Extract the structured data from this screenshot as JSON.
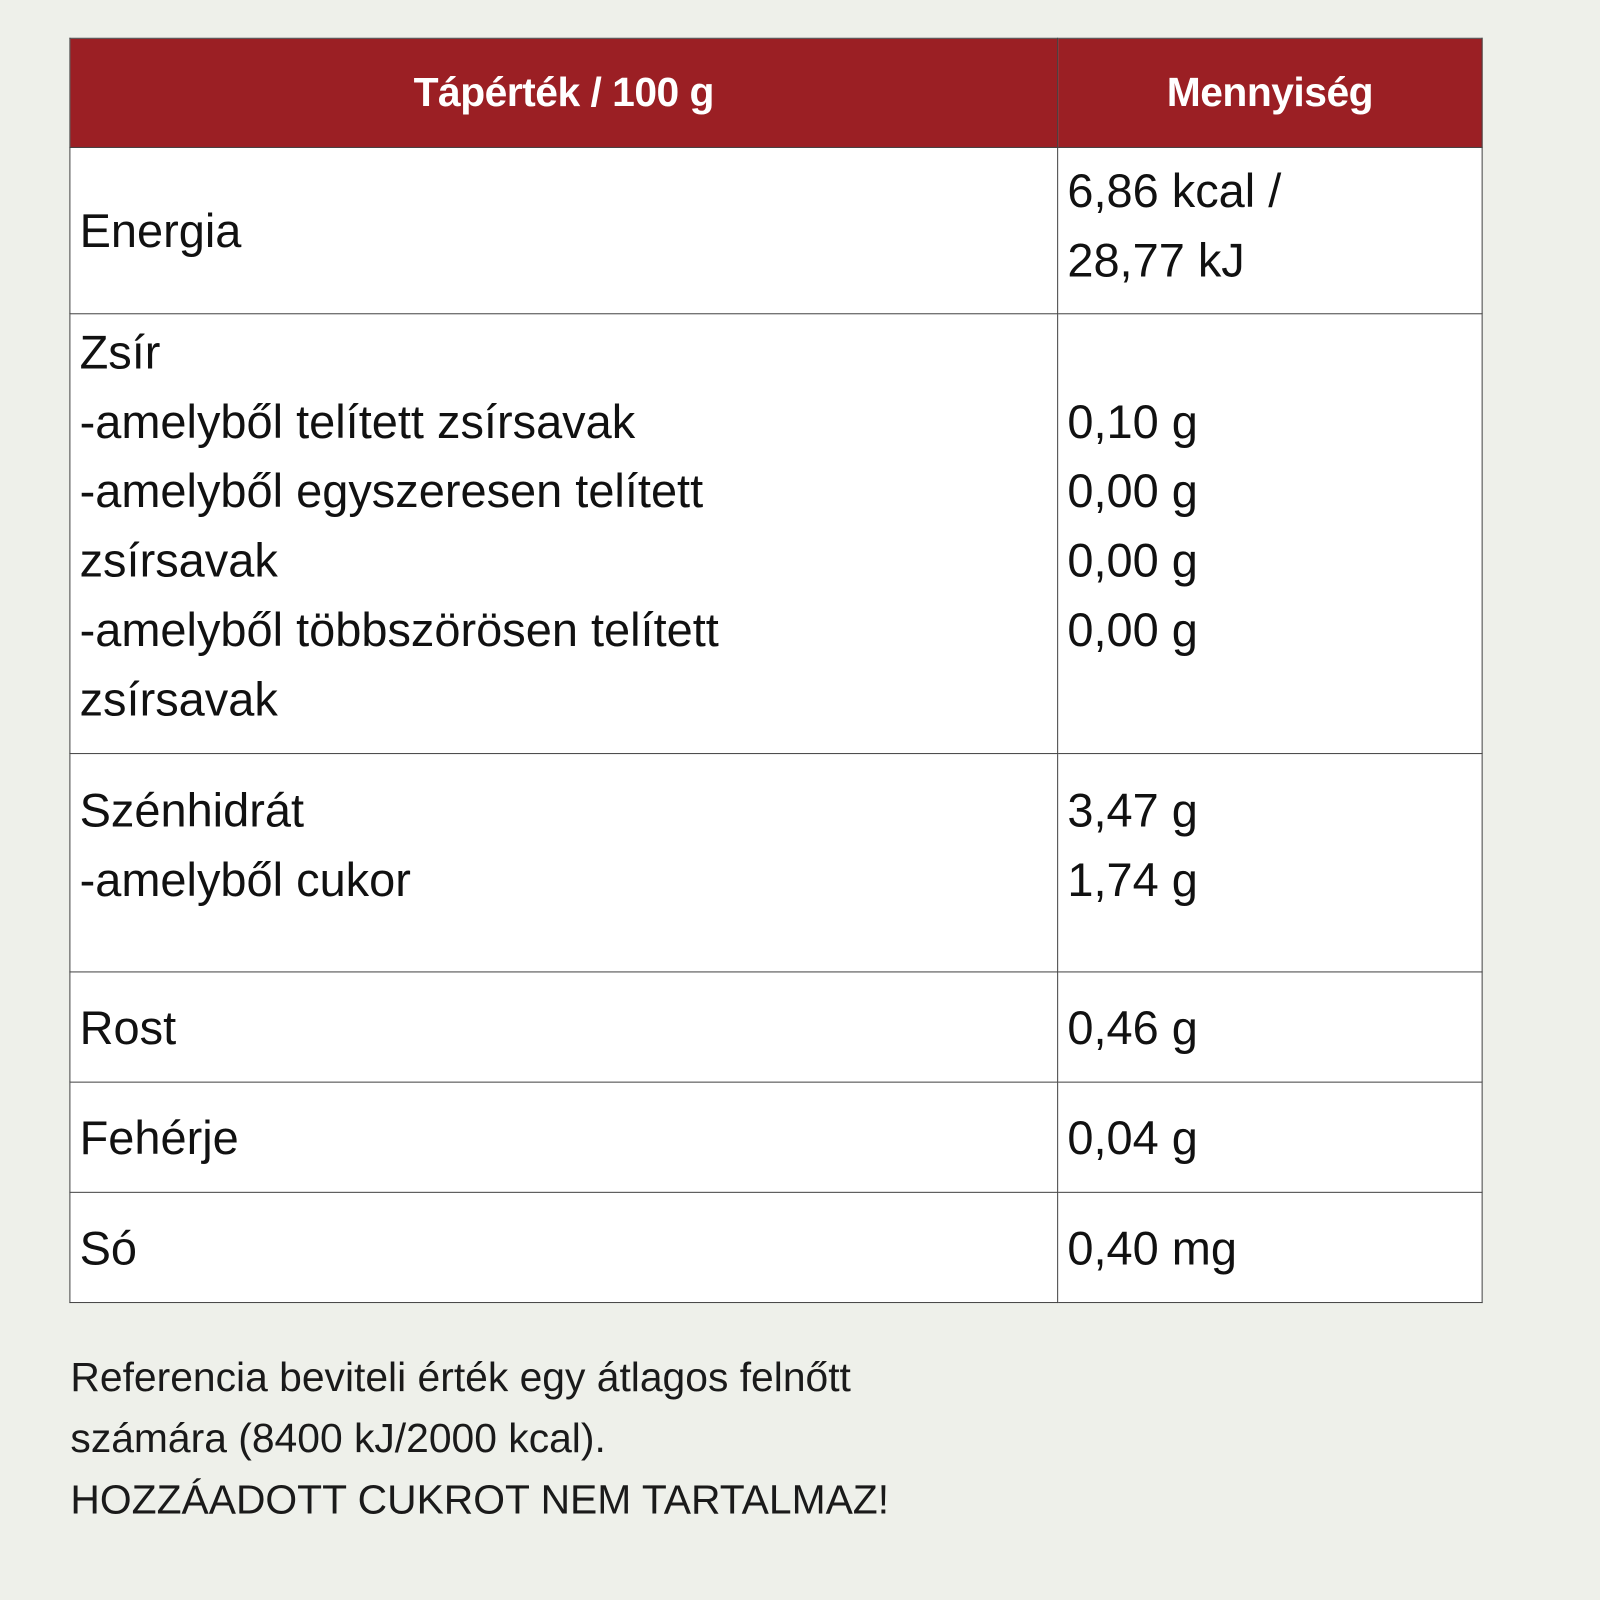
{
  "table": {
    "headers": [
      "Tápérték / 100 g",
      "Mennyiség"
    ],
    "energy": {
      "label": "Energia",
      "values": [
        "6,86 kcal /",
        "28,77 kJ"
      ]
    },
    "fat": {
      "labels": [
        "Zsír",
        "-amelyből telített zsírsavak",
        "-amelyből egyszeresen telített",
        "zsírsavak",
        "-amelyből többszörösen telített",
        "zsírsavak"
      ],
      "values": [
        "",
        "0,10 g",
        "0,00 g",
        "0,00 g",
        "0,00 g"
      ]
    },
    "carbs": {
      "labels": [
        "Szénhidrát",
        "-amelyből cukor"
      ],
      "values": [
        "3,47 g",
        "1,74 g"
      ]
    },
    "fiber": {
      "label": "Rost",
      "value": "0,46 g"
    },
    "protein": {
      "label": "Fehérje",
      "value": "0,04 g"
    },
    "salt": {
      "label": "Só",
      "value": "0,40 mg"
    }
  },
  "footer": {
    "lines": [
      "Referencia beviteli érték egy átlagos felnőtt",
      "számára (8400 kJ/2000 kcal).",
      "HOZZÁADOTT CUKROT NEM TARTALMAZ!"
    ]
  },
  "colors": {
    "header_bg": "#9b1f24",
    "page_bg": "#eef0ea"
  }
}
